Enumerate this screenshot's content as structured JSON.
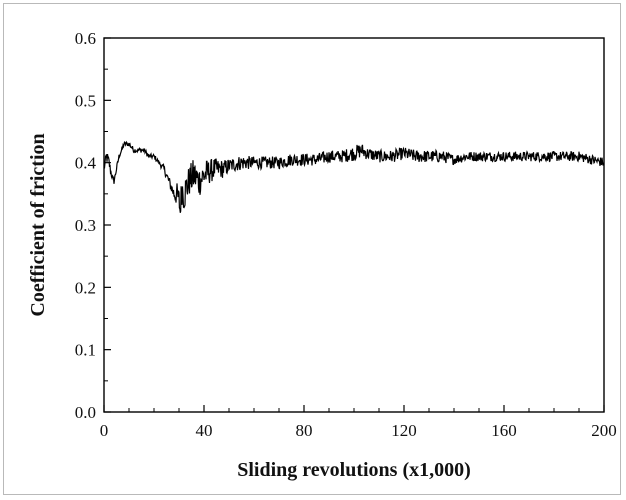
{
  "chart_data": {
    "type": "line",
    "title": "",
    "xlabel": "Sliding revolutions (x1,000)",
    "ylabel": "Coefficient of friction",
    "xlim": [
      0,
      200
    ],
    "ylim": [
      0.0,
      0.6
    ],
    "xticks": [
      "0",
      "40",
      "80",
      "120",
      "160",
      "200"
    ],
    "yticks": [
      "0.0",
      "0.1",
      "0.2",
      "0.3",
      "0.4",
      "0.5",
      "0.6"
    ],
    "grid": false,
    "legend": "none",
    "line_color": "#000000",
    "series": [
      {
        "x": [
          0,
          1,
          2,
          3,
          4,
          5,
          6,
          7,
          8,
          9,
          10,
          12,
          14,
          16,
          18,
          20,
          22,
          24,
          26,
          27,
          28,
          29,
          30,
          30.5,
          31,
          32,
          34,
          36,
          38,
          40,
          42,
          44,
          46,
          48,
          50,
          55,
          60,
          65,
          70,
          75,
          80,
          85,
          90,
          95,
          100,
          103,
          105,
          110,
          115,
          120,
          125,
          130,
          135,
          140,
          145,
          150,
          155,
          160,
          165,
          170,
          175,
          180,
          185,
          190,
          195,
          200
        ],
        "values": [
          0.39,
          0.41,
          0.4,
          0.38,
          0.37,
          0.39,
          0.41,
          0.42,
          0.43,
          0.43,
          0.43,
          0.42,
          0.42,
          0.42,
          0.41,
          0.41,
          0.4,
          0.39,
          0.37,
          0.36,
          0.35,
          0.35,
          0.34,
          0.32,
          0.36,
          0.35,
          0.37,
          0.38,
          0.37,
          0.38,
          0.385,
          0.39,
          0.39,
          0.39,
          0.395,
          0.4,
          0.4,
          0.4,
          0.4,
          0.405,
          0.405,
          0.405,
          0.41,
          0.41,
          0.415,
          0.42,
          0.415,
          0.41,
          0.41,
          0.415,
          0.41,
          0.41,
          0.41,
          0.405,
          0.41,
          0.41,
          0.41,
          0.41,
          0.41,
          0.41,
          0.41,
          0.41,
          0.41,
          0.41,
          0.405,
          0.4
        ],
        "noise": [
          0.005,
          0.01,
          0.01,
          0.005,
          0.005,
          0.005,
          0.004,
          0.004,
          0.004,
          0.004,
          0.004,
          0.004,
          0.004,
          0.004,
          0.004,
          0.004,
          0.004,
          0.006,
          0.008,
          0.01,
          0.012,
          0.02,
          0.02,
          0.01,
          0.025,
          0.03,
          0.025,
          0.028,
          0.025,
          0.025,
          0.02,
          0.018,
          0.015,
          0.015,
          0.012,
          0.012,
          0.01,
          0.01,
          0.01,
          0.01,
          0.01,
          0.01,
          0.01,
          0.01,
          0.012,
          0.012,
          0.01,
          0.01,
          0.01,
          0.01,
          0.01,
          0.01,
          0.01,
          0.008,
          0.008,
          0.008,
          0.008,
          0.008,
          0.008,
          0.008,
          0.008,
          0.008,
          0.008,
          0.008,
          0.008,
          0.008
        ]
      }
    ]
  }
}
